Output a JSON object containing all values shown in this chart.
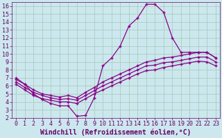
{
  "xlabel": "Windchill (Refroidissement éolien,°C)",
  "bg_color": "#cce8ee",
  "grid_color": "#aaccbb",
  "line_color": "#880088",
  "xlim": [
    -0.5,
    23.5
  ],
  "ylim": [
    2,
    16.5
  ],
  "xticks": [
    0,
    1,
    2,
    3,
    4,
    5,
    6,
    7,
    8,
    9,
    10,
    11,
    12,
    13,
    14,
    15,
    16,
    17,
    18,
    19,
    20,
    21,
    22,
    23
  ],
  "yticks": [
    2,
    3,
    4,
    5,
    6,
    7,
    8,
    9,
    10,
    11,
    12,
    13,
    14,
    15,
    16
  ],
  "series1_x": [
    0,
    1,
    2,
    3,
    4,
    5,
    6,
    7,
    8,
    9,
    10,
    11,
    12,
    13,
    14,
    15,
    16,
    17,
    18,
    19,
    20,
    21,
    22,
    23
  ],
  "series1_y": [
    7.0,
    6.2,
    5.0,
    4.3,
    3.8,
    3.5,
    3.5,
    2.2,
    2.3,
    4.5,
    8.5,
    9.5,
    11.0,
    13.5,
    14.5,
    16.2,
    16.2,
    15.2,
    12.0,
    10.2,
    10.2,
    10.2,
    10.2,
    9.5
  ],
  "series2_x": [
    0,
    1,
    2,
    3,
    4,
    5,
    6,
    7,
    8,
    9,
    10,
    11,
    12,
    13,
    14,
    15,
    16,
    17,
    18,
    19,
    20,
    21,
    22,
    23
  ],
  "series2_y": [
    6.8,
    6.2,
    5.5,
    5.0,
    4.8,
    4.6,
    4.8,
    4.5,
    5.2,
    5.8,
    6.5,
    7.0,
    7.5,
    8.0,
    8.5,
    9.0,
    9.2,
    9.5,
    9.6,
    9.8,
    10.0,
    10.2,
    10.2,
    9.5
  ],
  "series3_x": [
    0,
    1,
    2,
    3,
    4,
    5,
    6,
    7,
    8,
    9,
    10,
    11,
    12,
    13,
    14,
    15,
    16,
    17,
    18,
    19,
    20,
    21,
    22,
    23
  ],
  "series3_y": [
    6.5,
    5.8,
    5.2,
    4.8,
    4.5,
    4.3,
    4.4,
    4.2,
    4.8,
    5.4,
    6.0,
    6.5,
    7.0,
    7.5,
    8.0,
    8.5,
    8.6,
    8.9,
    9.0,
    9.2,
    9.4,
    9.6,
    9.6,
    9.0
  ],
  "series4_x": [
    0,
    1,
    2,
    3,
    4,
    5,
    6,
    7,
    8,
    9,
    10,
    11,
    12,
    13,
    14,
    15,
    16,
    17,
    18,
    19,
    20,
    21,
    22,
    23
  ],
  "series4_y": [
    6.2,
    5.5,
    4.8,
    4.4,
    4.2,
    4.0,
    4.0,
    3.8,
    4.4,
    5.0,
    5.5,
    6.0,
    6.5,
    7.0,
    7.5,
    7.9,
    8.0,
    8.3,
    8.5,
    8.7,
    8.9,
    9.1,
    9.0,
    8.5
  ],
  "font_color": "#660066",
  "font_size": 6,
  "marker": "+"
}
